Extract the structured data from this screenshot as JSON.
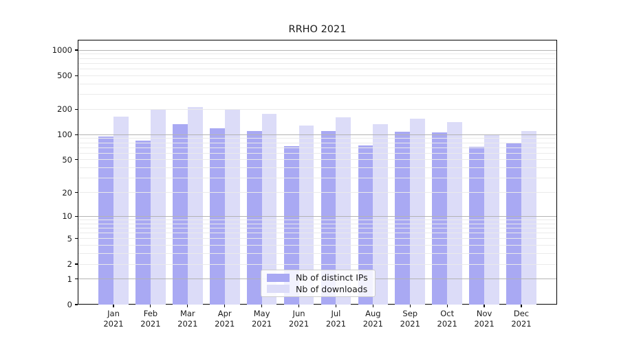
{
  "chart_data": {
    "type": "bar",
    "title": "RRHO 2021",
    "categories": [
      "Jan",
      "Feb",
      "Mar",
      "Apr",
      "May",
      "Jun",
      "Jul",
      "Aug",
      "Sep",
      "Oct",
      "Nov",
      "Dec"
    ],
    "xtick_second_line": "2021",
    "series": [
      {
        "name": "Nb of distinct IPs",
        "color": "#a9a9f3",
        "values": [
          95,
          85,
          134,
          118,
          110,
          73,
          110,
          74,
          108,
          106,
          72,
          80
        ]
      },
      {
        "name": "Nb of downloads",
        "color": "#dcdcf8",
        "values": [
          163,
          199,
          211,
          202,
          175,
          127,
          161,
          133,
          156,
          142,
          101,
          110
        ]
      }
    ],
    "yscale": "symlog",
    "yticks": [
      0,
      1,
      2,
      5,
      10,
      20,
      50,
      100,
      200,
      500,
      1000
    ],
    "major_grid_values": [
      1,
      10,
      100,
      1000
    ],
    "ylim": [
      0,
      1300
    ],
    "grid": "on",
    "legend_position": "lower center",
    "xlabel": "",
    "ylabel": ""
  },
  "colors": {
    "major_grid": "#b3b3b3",
    "minor_grid": "#eaeaea",
    "axis": "#000000",
    "text": "#1a1a1a"
  }
}
